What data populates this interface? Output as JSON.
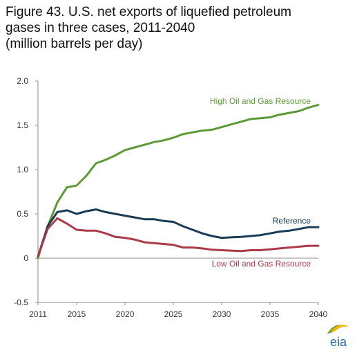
{
  "title_lines": [
    "Figure 43. U.S. net exports of liquefied petroleum",
    "gases in three cases, 2011-2040",
    "(million barrels per day)"
  ],
  "logo_text": "eia",
  "chart_data": {
    "type": "line",
    "x": [
      2011,
      2012,
      2013,
      2014,
      2015,
      2016,
      2017,
      2018,
      2019,
      2020,
      2021,
      2022,
      2023,
      2024,
      2025,
      2026,
      2027,
      2028,
      2029,
      2030,
      2031,
      2032,
      2033,
      2034,
      2035,
      2036,
      2037,
      2038,
      2039,
      2040
    ],
    "xlim": [
      2011,
      2040
    ],
    "ylim": [
      -0.5,
      2.0
    ],
    "xticks": [
      2011,
      2015,
      2020,
      2025,
      2030,
      2035,
      2040
    ],
    "xtick_labels": [
      "2011",
      "2015",
      "2020",
      "2025",
      "2030",
      "2035",
      "2040"
    ],
    "yticks": [
      -0.5,
      0,
      0.5,
      1.0,
      1.5,
      2.0
    ],
    "ytick_labels": [
      "-0.5",
      "0",
      "0.5",
      "1.0",
      "1.5",
      "2.0"
    ],
    "grid": false,
    "series": [
      {
        "name": "High Oil and Gas Resource",
        "color": "#5b9a34",
        "values": [
          0.0,
          0.36,
          0.63,
          0.8,
          0.82,
          0.93,
          1.07,
          1.11,
          1.16,
          1.22,
          1.25,
          1.28,
          1.31,
          1.33,
          1.36,
          1.4,
          1.42,
          1.44,
          1.45,
          1.48,
          1.51,
          1.54,
          1.57,
          1.58,
          1.59,
          1.62,
          1.64,
          1.66,
          1.7,
          1.73
        ]
      },
      {
        "name": "Reference",
        "color": "#183b57",
        "values": [
          0.02,
          0.36,
          0.52,
          0.54,
          0.5,
          0.53,
          0.55,
          0.52,
          0.5,
          0.48,
          0.46,
          0.44,
          0.44,
          0.42,
          0.41,
          0.36,
          0.32,
          0.28,
          0.25,
          0.23,
          0.235,
          0.24,
          0.25,
          0.26,
          0.28,
          0.3,
          0.31,
          0.33,
          0.35,
          0.35
        ]
      },
      {
        "name": "Low Oil and Gas Resource",
        "color": "#ab3b49",
        "values": [
          0.02,
          0.33,
          0.45,
          0.39,
          0.32,
          0.31,
          0.31,
          0.28,
          0.24,
          0.23,
          0.21,
          0.18,
          0.17,
          0.16,
          0.15,
          0.12,
          0.12,
          0.11,
          0.095,
          0.09,
          0.085,
          0.08,
          0.09,
          0.09,
          0.1,
          0.11,
          0.12,
          0.13,
          0.14,
          0.14
        ]
      }
    ]
  }
}
